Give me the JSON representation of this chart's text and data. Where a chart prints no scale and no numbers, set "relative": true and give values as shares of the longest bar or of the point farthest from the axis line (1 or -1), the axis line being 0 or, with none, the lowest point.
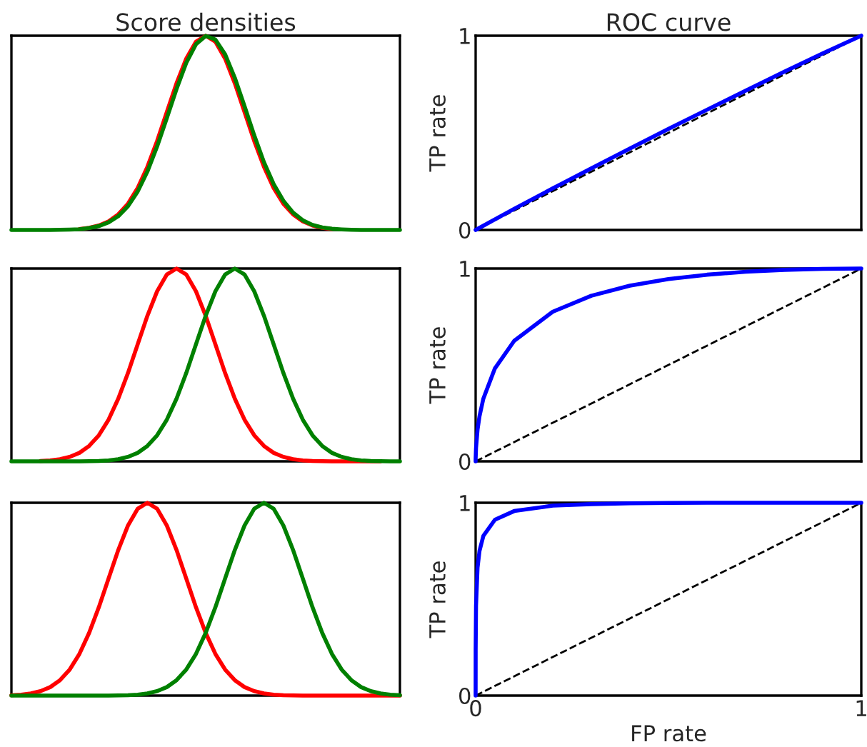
{
  "chart_data": [
    {
      "type": "line",
      "title": "Score densities",
      "relative": true,
      "categories": [
        null,
        null,
        null,
        null,
        null,
        null,
        null,
        null,
        null,
        null,
        null,
        null,
        null,
        null,
        null,
        null,
        null,
        null,
        null,
        null,
        null,
        null,
        null,
        null,
        null,
        null,
        null,
        null,
        null,
        null,
        null,
        null,
        null,
        null,
        null,
        null,
        null,
        null,
        null,
        null,
        null
      ],
      "series": [
        {
          "color": "#ff0000",
          "values": [
            null,
            null,
            null,
            null,
            null,
            null,
            null,
            0.005,
            0.011,
            0.023,
            0.044,
            0.08,
            0.135,
            0.216,
            0.325,
            0.458,
            0.607,
            0.755,
            0.882,
            0.969,
            1,
            0.969,
            0.882,
            0.755,
            0.607,
            0.458,
            0.325,
            0.216,
            0.135,
            0.08,
            0.044,
            0.023,
            0.011,
            0.005,
            null,
            null,
            null,
            null,
            null,
            null,
            null
          ]
        },
        {
          "color": "#008000",
          "values": [
            0,
            0,
            0,
            0,
            0,
            0.001,
            0.002,
            0.004,
            0.01,
            0.02,
            0.039,
            0.071,
            0.122,
            0.198,
            0.301,
            0.43,
            0.576,
            0.726,
            0.86,
            0.956,
            0.999,
            0.98,
            0.904,
            0.783,
            0.637,
            0.487,
            0.349,
            0.236,
            0.15,
            0.089,
            0.05,
            0.026,
            0.013,
            0.006,
            0.003,
            0.001,
            0,
            0,
            0,
            0,
            0
          ]
        }
      ]
    },
    {
      "type": "line",
      "title": "ROC curve",
      "ylabel": "TP rate",
      "tick_labels": "y",
      "xlim": [
        0,
        1
      ],
      "xticks": [
        0,
        1
      ],
      "ylim": [
        0,
        1
      ],
      "yticks": [
        0,
        1
      ],
      "series": [
        {
          "color": "#000000",
          "line_style": "dashed",
          "x": [
            0,
            1
          ],
          "values": [
            0,
            1
          ]
        },
        {
          "color": "#0000ff",
          "line_style": "solid",
          "x": [
            0,
            0.1,
            0.2,
            0.3,
            0.4,
            0.5,
            0.6,
            0.7,
            0.8,
            0.9,
            1
          ],
          "values": [
            0,
            0.109,
            0.214,
            0.317,
            0.419,
            0.52,
            0.619,
            0.717,
            0.814,
            0.909,
            1
          ]
        }
      ]
    },
    {
      "type": "line",
      "relative": true,
      "categories": [
        null,
        null,
        null,
        null,
        null,
        null,
        null,
        null,
        null,
        null,
        null,
        null,
        null,
        null,
        null,
        null,
        null,
        null,
        null,
        null,
        null,
        null,
        null,
        null,
        null,
        null,
        null,
        null,
        null,
        null,
        null,
        null,
        null,
        null,
        null,
        null,
        null,
        null,
        null,
        null,
        null
      ],
      "series": [
        {
          "color": "#ff0000",
          "values": [
            null,
            null,
            null,
            0.002,
            0.005,
            0.011,
            0.023,
            0.044,
            0.08,
            0.135,
            0.216,
            0.325,
            0.458,
            0.607,
            0.755,
            0.882,
            0.969,
            1,
            0.969,
            0.882,
            0.755,
            0.607,
            0.458,
            0.325,
            0.216,
            0.135,
            0.08,
            0.044,
            0.023,
            0.011,
            0.005,
            0.002,
            0.001,
            0,
            0,
            0,
            0,
            0,
            0,
            null,
            null
          ]
        },
        {
          "color": "#008000",
          "values": [
            0,
            0,
            0,
            0,
            0,
            0,
            0,
            0,
            0.001,
            0.002,
            0.005,
            0.011,
            0.023,
            0.044,
            0.08,
            0.135,
            0.216,
            0.325,
            0.458,
            0.607,
            0.755,
            0.882,
            0.969,
            1,
            0.969,
            0.882,
            0.755,
            0.607,
            0.458,
            0.325,
            0.216,
            0.135,
            0.08,
            0.044,
            0.023,
            0.011,
            0.005,
            0.002,
            0.001,
            0,
            0
          ]
        }
      ]
    },
    {
      "type": "line",
      "ylabel": "TP rate",
      "tick_labels": "y",
      "xlim": [
        0,
        1
      ],
      "xticks": [
        0,
        1
      ],
      "ylim": [
        0,
        1
      ],
      "yticks": [
        0,
        1
      ],
      "series": [
        {
          "color": "#000000",
          "line_style": "dashed",
          "x": [
            0,
            1
          ],
          "values": [
            0,
            1
          ]
        },
        {
          "color": "#0000ff",
          "line_style": "solid",
          "x": [
            0,
            0.0001,
            0.001,
            0.005,
            0.01,
            0.02,
            0.05,
            0.1,
            0.2,
            0.3,
            0.4,
            0.5,
            0.6,
            0.7,
            0.8,
            0.9,
            1
          ],
          "values": [
            0,
            0.017,
            0.068,
            0.165,
            0.234,
            0.325,
            0.482,
            0.625,
            0.776,
            0.859,
            0.911,
            0.945,
            0.968,
            0.983,
            0.993,
            0.998,
            1
          ]
        }
      ]
    },
    {
      "type": "line",
      "relative": true,
      "categories": [
        null,
        null,
        null,
        null,
        null,
        null,
        null,
        null,
        null,
        null,
        null,
        null,
        null,
        null,
        null,
        null,
        null,
        null,
        null,
        null,
        null,
        null,
        null,
        null,
        null,
        null,
        null,
        null,
        null,
        null,
        null,
        null,
        null,
        null,
        null,
        null,
        null,
        null,
        null,
        null,
        null
      ],
      "series": [
        {
          "color": "#ff0000",
          "values": [
            0.002,
            0.005,
            0.011,
            0.023,
            0.044,
            0.08,
            0.135,
            0.216,
            0.325,
            0.458,
            0.607,
            0.755,
            0.882,
            0.969,
            1,
            0.969,
            0.882,
            0.755,
            0.607,
            0.458,
            0.325,
            0.216,
            0.135,
            0.08,
            0.044,
            0.023,
            0.011,
            0.005,
            0.002,
            0.001,
            0,
            0,
            0,
            0,
            0,
            0,
            0,
            0,
            0,
            0,
            0
          ]
        },
        {
          "color": "#008000",
          "values": [
            0,
            0,
            0,
            0,
            0,
            0,
            0,
            0,
            0,
            0,
            0,
            0.001,
            0.002,
            0.005,
            0.011,
            0.023,
            0.044,
            0.08,
            0.135,
            0.216,
            0.325,
            0.458,
            0.607,
            0.755,
            0.882,
            0.969,
            1,
            0.969,
            0.882,
            0.755,
            0.607,
            0.458,
            0.325,
            0.216,
            0.135,
            0.08,
            0.044,
            0.023,
            0.011,
            0.005,
            0.002
          ]
        }
      ]
    },
    {
      "type": "line",
      "xlabel": "FP rate",
      "ylabel": "TP rate",
      "xlim": [
        0,
        1
      ],
      "xticks": [
        0,
        1
      ],
      "ylim": [
        0,
        1
      ],
      "yticks": [
        0,
        1
      ],
      "series": [
        {
          "color": "#000000",
          "line_style": "dashed",
          "x": [
            0,
            1
          ],
          "values": [
            0,
            1
          ]
        },
        {
          "color": "#0000ff",
          "line_style": "solid",
          "x": [
            0,
            0.0001,
            0.001,
            0.005,
            0.01,
            0.02,
            0.05,
            0.1,
            0.2,
            0.3,
            0.4,
            0.5,
            0.6,
            0.7,
            0.8,
            0.9,
            1
          ],
          "values": [
            0,
            0.236,
            0.464,
            0.664,
            0.75,
            0.828,
            0.912,
            0.957,
            0.985,
            0.993,
            0.997,
            0.999,
            1,
            1,
            1,
            1,
            1
          ]
        }
      ]
    }
  ]
}
